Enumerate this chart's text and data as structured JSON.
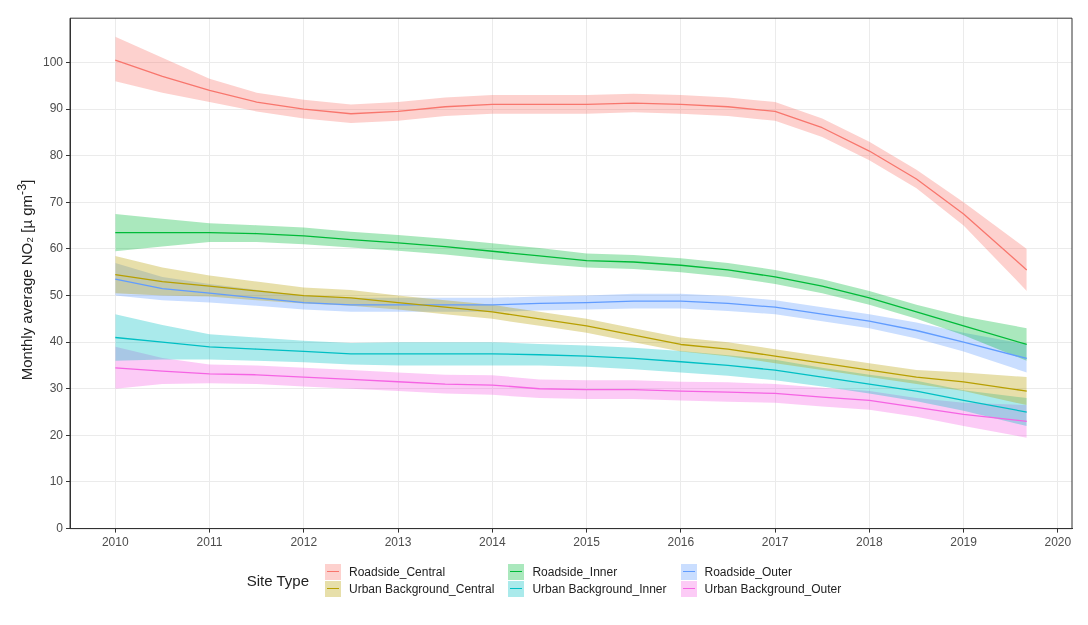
{
  "chart_data": {
    "type": "line",
    "ylabel": "Monthly average NO₂ [µ gm$^{-3}$]",
    "legend_title": "Site Type",
    "legend": "bottom",
    "grid": true,
    "marker": "none",
    "line_style": "solid",
    "x": [
      2010,
      2010.5,
      2011,
      2011.5,
      2012,
      2012.5,
      2013,
      2013.5,
      2014,
      2014.5,
      2015,
      2015.5,
      2016,
      2016.5,
      2017,
      2017.5,
      2018,
      2018.5,
      2019,
      2019.67
    ],
    "xlim": [
      2009.52,
      2020.15
    ],
    "xticks": [
      2010,
      2011,
      2012,
      2013,
      2014,
      2015,
      2016,
      2017,
      2018,
      2019,
      2020
    ],
    "ylim": [
      0,
      109.5
    ],
    "yticks": [
      0,
      10,
      20,
      30,
      40,
      50,
      60,
      70,
      80,
      90,
      100
    ],
    "series": [
      {
        "name": "Roadside_Central",
        "color": "#f8766d",
        "values": [
          100.5,
          97,
          94,
          91.5,
          90,
          89,
          89.5,
          90.5,
          91,
          91,
          91,
          91.3,
          91,
          90.5,
          89.5,
          86,
          81,
          75,
          67.5,
          55.5
        ],
        "lower": [
          96,
          93.5,
          91.5,
          89.5,
          88,
          87,
          87.5,
          88.5,
          89,
          89,
          89,
          89.3,
          89,
          88.5,
          87.5,
          84,
          79,
          73,
          65,
          51
        ],
        "upper": [
          105.5,
          101,
          96.5,
          93.5,
          92,
          91,
          91.5,
          92.5,
          93,
          93,
          93,
          93.3,
          93,
          92.5,
          91.5,
          88,
          83,
          77,
          70,
          60
        ]
      },
      {
        "name": "Urban Background_Central",
        "color": "#b79f00",
        "values": [
          54.5,
          53,
          52,
          51,
          50,
          49.5,
          48.5,
          47.5,
          46.5,
          45,
          43.5,
          41.5,
          39.5,
          38.5,
          37,
          35.5,
          34,
          32.5,
          31.5,
          29.5
        ],
        "lower": [
          50.5,
          50,
          49.8,
          49,
          48.3,
          47.8,
          47,
          46,
          45,
          43.5,
          42,
          40,
          38,
          37,
          35.5,
          34,
          32.5,
          31,
          29.5,
          26.5
        ],
        "upper": [
          58.5,
          56,
          54.3,
          53,
          51.7,
          51.2,
          50,
          49,
          48,
          46.5,
          45,
          43,
          41,
          40,
          38.5,
          37,
          35.5,
          34,
          33.5,
          32.5
        ]
      },
      {
        "name": "Roadside_Inner",
        "color": "#00ba38",
        "values": [
          63.5,
          63.5,
          63.5,
          63.3,
          62.8,
          62,
          61.3,
          60.5,
          59.5,
          58.5,
          57.5,
          57.2,
          56.5,
          55.5,
          54,
          52,
          49.5,
          46.5,
          43.5,
          39.5
        ],
        "lower": [
          59.5,
          60.5,
          61.5,
          61.5,
          61,
          60.3,
          59.6,
          58.8,
          57.8,
          56.8,
          56,
          55.7,
          55,
          54,
          52.5,
          50.5,
          48,
          45,
          41.5,
          36
        ],
        "upper": [
          67.5,
          66.5,
          65.5,
          65.1,
          64.6,
          63.7,
          63,
          62.2,
          61.2,
          60.2,
          59,
          58.7,
          58,
          57,
          55.5,
          53.5,
          51,
          48,
          45.5,
          43
        ]
      },
      {
        "name": "Urban Background_Inner",
        "color": "#00bfc4",
        "values": [
          41,
          40,
          39,
          38.5,
          38,
          37.5,
          37.5,
          37.5,
          37.5,
          37.3,
          37,
          36.5,
          35.8,
          35,
          34,
          32.5,
          31,
          29.5,
          27.5,
          25
        ],
        "lower": [
          36,
          36.3,
          36.3,
          36,
          35.7,
          35.2,
          35,
          35,
          35,
          35,
          34.7,
          34.2,
          33.5,
          32.8,
          31.8,
          30.5,
          29,
          27.3,
          25.3,
          22
        ],
        "upper": [
          46,
          43.7,
          41.7,
          41,
          40.3,
          39.8,
          40,
          40,
          40,
          39.6,
          39.3,
          38.8,
          38.1,
          37.2,
          36.2,
          34.5,
          33,
          31.7,
          29.7,
          28
        ]
      },
      {
        "name": "Roadside_Outer",
        "color": "#619cff",
        "values": [
          53.5,
          51.5,
          50.5,
          49.5,
          48.5,
          48,
          48,
          48,
          48,
          48.3,
          48.5,
          48.8,
          48.8,
          48.3,
          47.5,
          46,
          44.5,
          42.5,
          40,
          36.5
        ],
        "lower": [
          50,
          49,
          48.5,
          47.8,
          47,
          46.5,
          46.5,
          46.5,
          46.5,
          46.8,
          47,
          47.2,
          47.2,
          46.7,
          46,
          44.5,
          43,
          40.8,
          38,
          33.5
        ],
        "upper": [
          57,
          54,
          52.5,
          51.2,
          50,
          49.5,
          49.5,
          49.5,
          49.5,
          49.8,
          50,
          50.4,
          50.4,
          49.9,
          49,
          47.5,
          46,
          44.2,
          42,
          39.5
        ]
      },
      {
        "name": "Urban Background_Outer",
        "color": "#f564e3",
        "values": [
          34.5,
          33.8,
          33.2,
          33,
          32.5,
          32,
          31.5,
          31,
          30.8,
          30,
          29.8,
          29.8,
          29.5,
          29.3,
          29,
          28.2,
          27.5,
          26,
          24.5,
          23
        ],
        "lower": [
          30,
          31,
          31.2,
          31,
          30.5,
          30,
          29.5,
          29,
          28.7,
          28,
          27.8,
          27.8,
          27.5,
          27.2,
          27,
          26.2,
          25.5,
          24,
          22,
          19.5
        ],
        "upper": [
          39,
          36.6,
          35.2,
          35,
          34.5,
          34,
          33.5,
          33,
          32.9,
          32,
          31.8,
          31.8,
          31.5,
          31.4,
          31,
          30.2,
          29.5,
          28,
          27,
          26.5
        ]
      }
    ]
  }
}
